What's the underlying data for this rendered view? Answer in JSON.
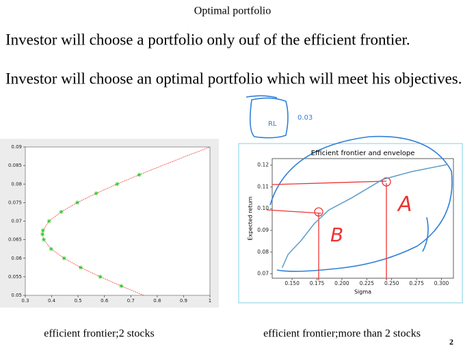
{
  "header": {
    "title": "Optimal portfolio"
  },
  "body": {
    "lines": [
      "Investor will choose a portfolio only ouf of the efficient frontier.",
      "Investor will choose an optimal portfolio which will meet his objectives."
    ]
  },
  "left_chart": {
    "type": "line",
    "xlim": [
      0.3,
      1
    ],
    "ylim": [
      0.05,
      0.09
    ],
    "xticks": [
      0.3,
      0.4,
      0.5,
      0.6,
      0.7,
      0.8,
      0.9,
      1
    ],
    "yticks": [
      0.05,
      0.055,
      0.06,
      0.065,
      0.07,
      0.075,
      0.08,
      0.085,
      0.09
    ],
    "series": [
      {
        "type": "line",
        "color": "#e8413c",
        "x": [
          0.749,
          0.664,
          0.584,
          0.51,
          0.447,
          0.398,
          0.37,
          0.365,
          0.367,
          0.39,
          0.436,
          0.497,
          0.569,
          0.648,
          0.732,
          0.819,
          0.909,
          1.0
        ],
        "y": [
          0.05,
          0.0525,
          0.055,
          0.0575,
          0.06,
          0.0625,
          0.065,
          0.0665,
          0.0675,
          0.07,
          0.0725,
          0.075,
          0.0775,
          0.08,
          0.0825,
          0.085,
          0.0875,
          0.09
        ]
      },
      {
        "type": "scatter",
        "marker": "star",
        "color": "#22cc22",
        "x": [
          0.664,
          0.584,
          0.51,
          0.447,
          0.398,
          0.37,
          0.365,
          0.367,
          0.39,
          0.436,
          0.497,
          0.569,
          0.648,
          0.732
        ],
        "y": [
          0.0525,
          0.055,
          0.0575,
          0.06,
          0.0625,
          0.065,
          0.0665,
          0.0675,
          0.07,
          0.0725,
          0.075,
          0.0775,
          0.08,
          0.0825
        ]
      }
    ],
    "caption": "efficient frontier;2 stocks"
  },
  "right_chart": {
    "type": "line",
    "title": "Efficient frontier and envelope",
    "x_label": "Sigma",
    "y_label": "Expected return",
    "xlim": [
      0.13,
      0.312
    ],
    "ylim": [
      0.068,
      0.123
    ],
    "xticks": [
      {
        "value": 0.15,
        "label": "0.150"
      },
      {
        "value": 0.175,
        "label": "0.175"
      },
      {
        "value": 0.2,
        "label": "0.200"
      },
      {
        "value": 0.225,
        "label": "0.225"
      },
      {
        "value": 0.25,
        "label": "0.250"
      },
      {
        "value": 0.275,
        "label": "0.275"
      },
      {
        "value": 0.3,
        "label": "0.300"
      }
    ],
    "yticks": [
      0.07,
      0.08,
      0.09,
      {
        "value": 0.1,
        "label": "0.10"
      },
      0.11,
      0.12
    ],
    "series": [
      {
        "type": "line",
        "color": "#5b9bc9",
        "x": [
          0.14,
          0.146,
          0.159,
          0.172,
          0.187,
          0.21,
          0.241,
          0.27,
          0.306
        ],
        "y": [
          0.0728,
          0.079,
          0.0853,
          0.093,
          0.0994,
          0.105,
          0.1134,
          0.117,
          0.1203
        ]
      }
    ],
    "annotations": [
      "RL",
      "0.03",
      "A",
      "B"
    ],
    "caption": "efficient frontier;more than 2 stocks"
  },
  "page_number": "2"
}
